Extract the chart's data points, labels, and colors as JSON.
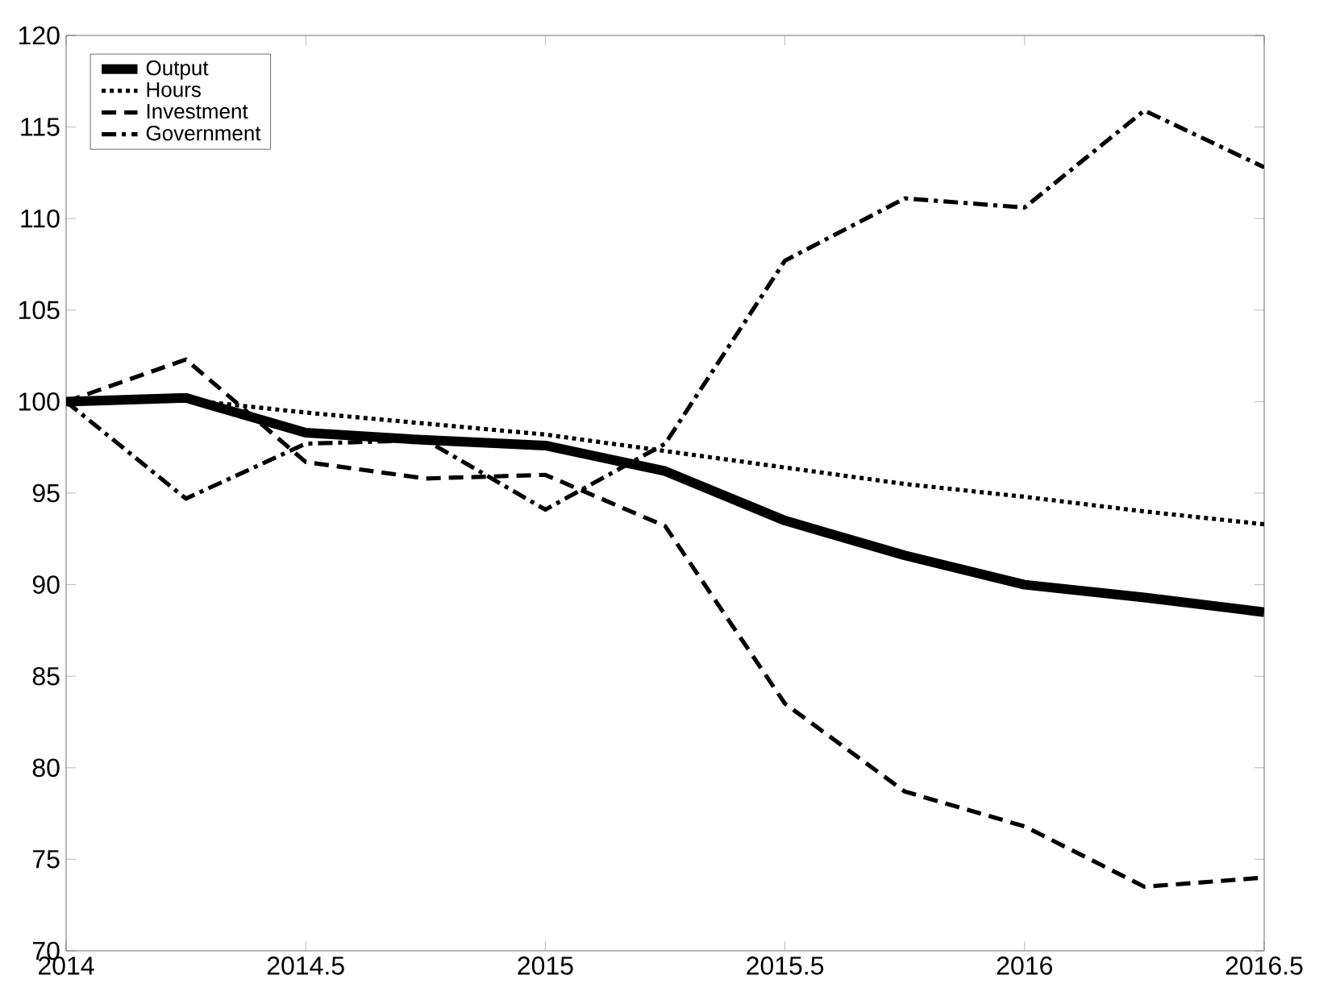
{
  "chart_data": {
    "type": "line",
    "x": [
      2014,
      2014.25,
      2014.5,
      2014.75,
      2015,
      2015.25,
      2015.5,
      2015.75,
      2016,
      2016.25,
      2016.5
    ],
    "series": [
      {
        "name": "Output",
        "color": "#000000",
        "line_style": "solid",
        "values": [
          100,
          100.2,
          98.3,
          97.9,
          97.6,
          96.2,
          93.5,
          91.6,
          90.0,
          89.3,
          88.5
        ]
      },
      {
        "name": "Hours",
        "color": "#000000",
        "line_style": "dotted",
        "values": [
          100,
          100.1,
          99.4,
          98.8,
          98.2,
          97.3,
          96.4,
          95.5,
          94.8,
          94.0,
          93.3
        ]
      },
      {
        "name": "Investment",
        "color": "#000000",
        "line_style": "dashed",
        "values": [
          100,
          102.3,
          96.7,
          95.8,
          96.0,
          93.2,
          83.5,
          78.7,
          76.8,
          73.5,
          74.0
        ]
      },
      {
        "name": "Government",
        "color": "#000000",
        "line_style": "dashdot",
        "values": [
          100,
          94.7,
          97.7,
          97.9,
          94.1,
          97.7,
          107.7,
          111.1,
          110.6,
          115.9,
          112.8
        ]
      }
    ],
    "xlim": [
      2014,
      2016.5
    ],
    "xticks": [
      2014,
      2014.5,
      2015,
      2015.5,
      2016,
      2016.5
    ],
    "ylim": [
      70,
      120
    ],
    "yticks": [
      70,
      75,
      80,
      85,
      90,
      95,
      100,
      105,
      110,
      115,
      120
    ],
    "legend": "top left"
  }
}
